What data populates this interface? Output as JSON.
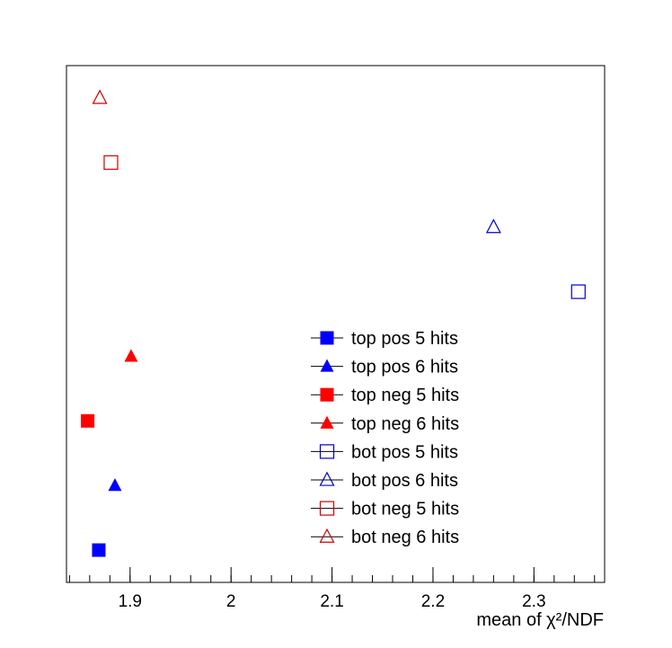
{
  "chart_data": {
    "type": "scatter",
    "title": "",
    "xlabel": "mean of χ²/NDF",
    "ylabel": "",
    "xlim": [
      1.837,
      2.37
    ],
    "ylim": [
      0.5,
      8.5
    ],
    "x_ticks": [
      {
        "value": 1.9,
        "label": "1.9"
      },
      {
        "value": 2.0,
        "label": "2"
      },
      {
        "value": 2.1,
        "label": "2.1"
      },
      {
        "value": 2.2,
        "label": "2.2"
      },
      {
        "value": 2.3,
        "label": "2.3"
      }
    ],
    "x_minor_step": 0.02,
    "y_ticks": [],
    "grid": false,
    "legend_position": "bottom-center",
    "series": [
      {
        "name": "top pos 5 hits",
        "marker": "square",
        "filled": true,
        "color": "#0000ff",
        "x": [
          1.869
        ],
        "y": [
          1
        ]
      },
      {
        "name": "top pos 6 hits",
        "marker": "triangle",
        "filled": true,
        "color": "#0000ff",
        "x": [
          1.885
        ],
        "y": [
          2
        ]
      },
      {
        "name": "top neg 5 hits",
        "marker": "square",
        "filled": true,
        "color": "#ff0000",
        "x": [
          1.858
        ],
        "y": [
          3
        ]
      },
      {
        "name": "top neg 6 hits",
        "marker": "triangle",
        "filled": true,
        "color": "#ff0000",
        "x": [
          1.901
        ],
        "y": [
          4
        ]
      },
      {
        "name": "bot pos 5 hits",
        "marker": "square",
        "filled": false,
        "color": "#0000cc",
        "x": [
          2.344
        ],
        "y": [
          5
        ]
      },
      {
        "name": "bot pos 6 hits",
        "marker": "triangle",
        "filled": false,
        "color": "#0000cc",
        "x": [
          2.26
        ],
        "y": [
          6
        ]
      },
      {
        "name": "bot neg 5 hits",
        "marker": "square",
        "filled": false,
        "color": "#cc0000",
        "x": [
          1.881
        ],
        "y": [
          7
        ]
      },
      {
        "name": "bot neg 6 hits",
        "marker": "triangle",
        "filled": false,
        "color": "#cc0000",
        "x": [
          1.87
        ],
        "y": [
          8
        ]
      }
    ]
  }
}
